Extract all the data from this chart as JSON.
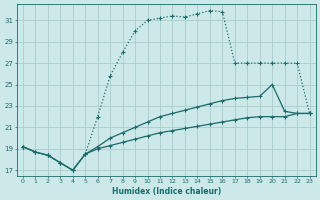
{
  "xlabel": "Humidex (Indice chaleur)",
  "ylabel": "",
  "bg_color": "#cde8e8",
  "grid_color": "#aacccc",
  "line_color": "#1a6b6b",
  "xlim": [
    -0.5,
    23.5
  ],
  "ylim": [
    16.5,
    32.5
  ],
  "xticks": [
    0,
    1,
    2,
    3,
    4,
    5,
    6,
    7,
    8,
    9,
    10,
    11,
    12,
    13,
    14,
    15,
    16,
    17,
    18,
    19,
    20,
    21,
    22,
    23
  ],
  "yticks": [
    17,
    19,
    21,
    23,
    25,
    27,
    29,
    31
  ],
  "curve1_x": [
    0,
    1,
    2,
    3,
    4,
    5,
    6,
    7,
    8,
    9,
    10,
    11,
    12,
    13,
    14,
    15,
    16,
    17,
    18,
    19,
    20,
    21,
    22,
    23
  ],
  "curve1_y": [
    19.2,
    18.7,
    18.4,
    17.7,
    17.0,
    18.5,
    22.0,
    25.8,
    28.0,
    30.0,
    31.0,
    31.2,
    31.4,
    31.3,
    31.6,
    31.9,
    31.8,
    27.0,
    27.0,
    27.0,
    27.0,
    27.0,
    27.0,
    22.3
  ],
  "curve1_dotted": true,
  "curve2_x": [
    0,
    1,
    2,
    3,
    4,
    5,
    6,
    7,
    8,
    9,
    10,
    11,
    12,
    13,
    14,
    15,
    16,
    17,
    18,
    19,
    20,
    21,
    22,
    23
  ],
  "curve2_y": [
    19.2,
    18.7,
    18.4,
    17.7,
    17.0,
    18.5,
    19.2,
    20.0,
    20.5,
    21.0,
    21.5,
    22.0,
    22.3,
    22.6,
    22.9,
    23.2,
    23.5,
    23.7,
    23.8,
    23.9,
    25.0,
    22.5,
    22.3,
    22.3
  ],
  "curve2_dotted": false,
  "curve3_x": [
    0,
    1,
    2,
    3,
    4,
    5,
    6,
    7,
    8,
    9,
    10,
    11,
    12,
    13,
    14,
    15,
    16,
    17,
    18,
    19,
    20,
    21,
    22,
    23
  ],
  "curve3_y": [
    19.2,
    18.7,
    18.4,
    17.7,
    17.0,
    18.5,
    19.0,
    19.3,
    19.6,
    19.9,
    20.2,
    20.5,
    20.7,
    20.9,
    21.1,
    21.3,
    21.5,
    21.7,
    21.9,
    22.0,
    22.0,
    22.0,
    22.3,
    22.3
  ],
  "curve3_dotted": false
}
